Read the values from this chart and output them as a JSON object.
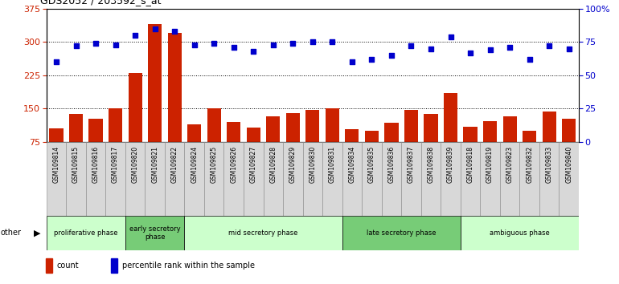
{
  "title": "GDS2052 / 203592_s_at",
  "samples": [
    "GSM109814",
    "GSM109815",
    "GSM109816",
    "GSM109817",
    "GSM109820",
    "GSM109821",
    "GSM109822",
    "GSM109824",
    "GSM109825",
    "GSM109826",
    "GSM109827",
    "GSM109828",
    "GSM109829",
    "GSM109830",
    "GSM109831",
    "GSM109834",
    "GSM109835",
    "GSM109836",
    "GSM109837",
    "GSM109838",
    "GSM109839",
    "GSM109818",
    "GSM109819",
    "GSM109823",
    "GSM109832",
    "GSM109833",
    "GSM109840"
  ],
  "counts": [
    105,
    138,
    128,
    150,
    230,
    340,
    320,
    115,
    150,
    120,
    108,
    133,
    140,
    148,
    150,
    103,
    100,
    118,
    148,
    138,
    185,
    110,
    122,
    132,
    100,
    143,
    128
  ],
  "percentiles": [
    60,
    72,
    74,
    73,
    80,
    85,
    83,
    73,
    74,
    71,
    68,
    73,
    74,
    75,
    75,
    60,
    62,
    65,
    72,
    70,
    79,
    67,
    69,
    71,
    62,
    72,
    70
  ],
  "phases": [
    {
      "name": "proliferative phase",
      "start": 0,
      "end": 4,
      "color": "#ccffcc"
    },
    {
      "name": "early secretory\nphase",
      "start": 4,
      "end": 7,
      "color": "#77cc77"
    },
    {
      "name": "mid secretory phase",
      "start": 7,
      "end": 15,
      "color": "#ccffcc"
    },
    {
      "name": "late secretory phase",
      "start": 15,
      "end": 21,
      "color": "#77cc77"
    },
    {
      "name": "ambiguous phase",
      "start": 21,
      "end": 27,
      "color": "#ccffcc"
    }
  ],
  "ylim_left": [
    75,
    375
  ],
  "ylim_right": [
    0,
    100
  ],
  "yticks_left": [
    75,
    150,
    225,
    300,
    375
  ],
  "yticks_right": [
    0,
    25,
    50,
    75,
    100
  ],
  "bar_color": "#cc2200",
  "dot_color": "#0000cc",
  "bg_color": "#ffffff",
  "legend_count_label": "count",
  "legend_pct_label": "percentile rank within the sample"
}
